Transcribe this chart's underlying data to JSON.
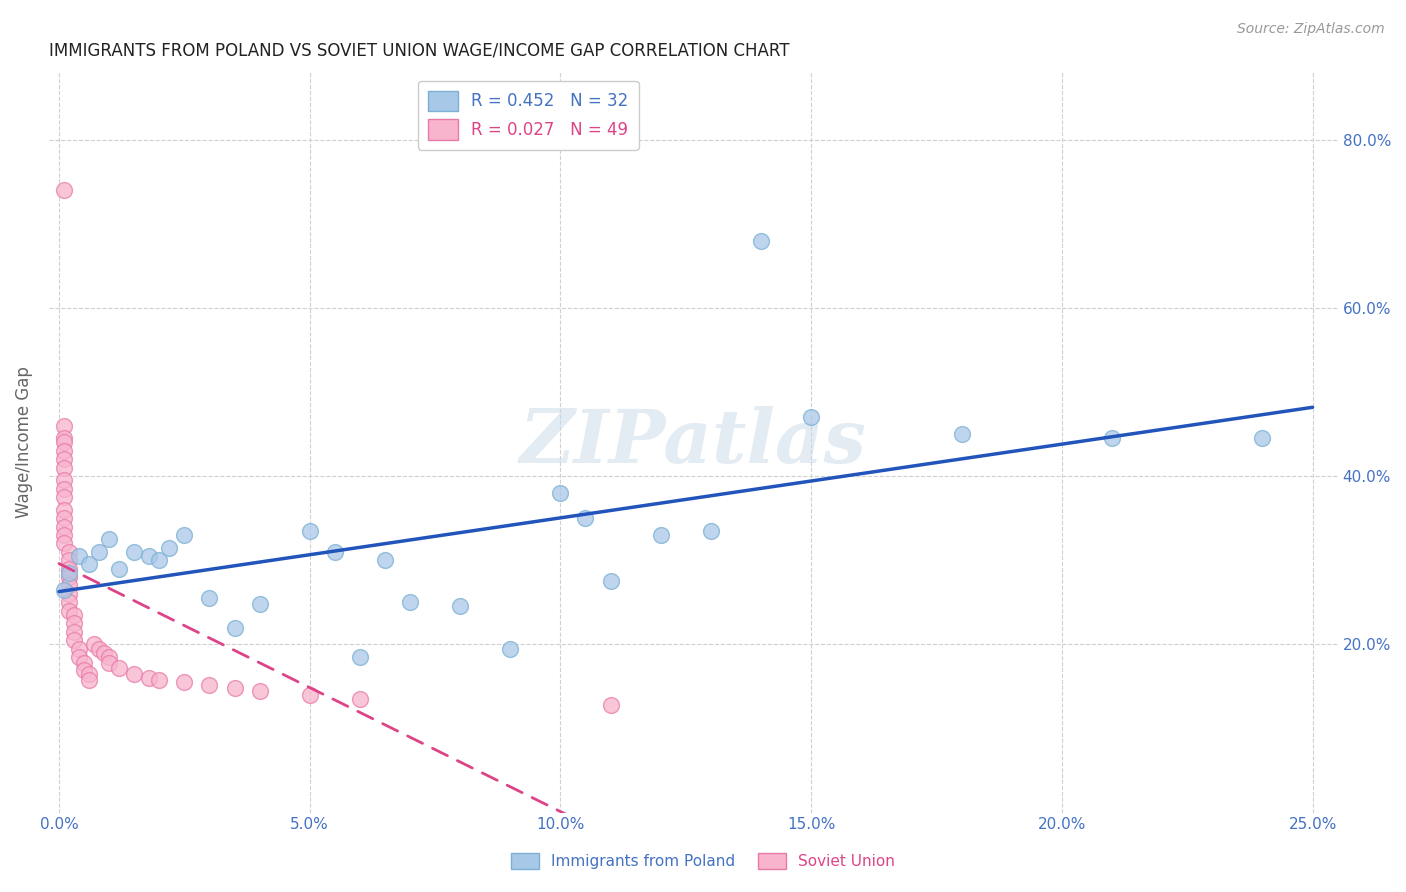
{
  "title": "IMMIGRANTS FROM POLAND VS SOVIET UNION WAGE/INCOME GAP CORRELATION CHART",
  "source": "Source: ZipAtlas.com",
  "ylabel": "Wage/Income Gap",
  "xlim": [
    -0.002,
    0.255
  ],
  "ylim": [
    0.0,
    0.88
  ],
  "xticks": [
    0.0,
    0.05,
    0.1,
    0.15,
    0.2,
    0.25
  ],
  "yticks": [
    0.2,
    0.4,
    0.6,
    0.8
  ],
  "poland_R": 0.452,
  "poland_N": 32,
  "soviet_R": 0.027,
  "soviet_N": 49,
  "poland_color": "#a8c8e8",
  "poland_edge": "#7bafd4",
  "soviet_color": "#f8b4cc",
  "soviet_edge": "#e87aaa",
  "poland_x": [
    0.001,
    0.002,
    0.004,
    0.006,
    0.008,
    0.01,
    0.012,
    0.015,
    0.018,
    0.02,
    0.022,
    0.025,
    0.03,
    0.035,
    0.04,
    0.05,
    0.055,
    0.06,
    0.065,
    0.07,
    0.08,
    0.09,
    0.1,
    0.105,
    0.11,
    0.12,
    0.13,
    0.14,
    0.15,
    0.18,
    0.21,
    0.24
  ],
  "poland_y": [
    0.265,
    0.285,
    0.305,
    0.295,
    0.31,
    0.325,
    0.29,
    0.31,
    0.305,
    0.3,
    0.315,
    0.33,
    0.255,
    0.22,
    0.248,
    0.335,
    0.31,
    0.185,
    0.3,
    0.25,
    0.245,
    0.195,
    0.38,
    0.35,
    0.275,
    0.33,
    0.335,
    0.68,
    0.47,
    0.45,
    0.445,
    0.445
  ],
  "soviet_x": [
    0.001,
    0.001,
    0.001,
    0.001,
    0.001,
    0.001,
    0.001,
    0.001,
    0.001,
    0.001,
    0.001,
    0.001,
    0.001,
    0.001,
    0.001,
    0.002,
    0.002,
    0.002,
    0.002,
    0.002,
    0.002,
    0.002,
    0.002,
    0.003,
    0.003,
    0.003,
    0.003,
    0.004,
    0.004,
    0.005,
    0.005,
    0.006,
    0.006,
    0.007,
    0.008,
    0.009,
    0.01,
    0.01,
    0.012,
    0.015,
    0.018,
    0.02,
    0.025,
    0.03,
    0.035,
    0.04,
    0.05,
    0.06,
    0.11
  ],
  "soviet_y": [
    0.74,
    0.46,
    0.445,
    0.44,
    0.43,
    0.42,
    0.41,
    0.395,
    0.385,
    0.375,
    0.36,
    0.35,
    0.34,
    0.33,
    0.32,
    0.31,
    0.3,
    0.29,
    0.28,
    0.27,
    0.26,
    0.25,
    0.24,
    0.235,
    0.225,
    0.215,
    0.205,
    0.195,
    0.185,
    0.178,
    0.17,
    0.165,
    0.158,
    0.2,
    0.195,
    0.19,
    0.185,
    0.178,
    0.172,
    0.165,
    0.16,
    0.158,
    0.155,
    0.152,
    0.148,
    0.145,
    0.14,
    0.135,
    0.128
  ],
  "watermark": "ZIPatlas",
  "background_color": "#ffffff",
  "grid_color": "#d0d0d0",
  "title_fontsize": 12,
  "source_fontsize": 10,
  "axis_fontsize": 11,
  "tick_fontsize": 11
}
